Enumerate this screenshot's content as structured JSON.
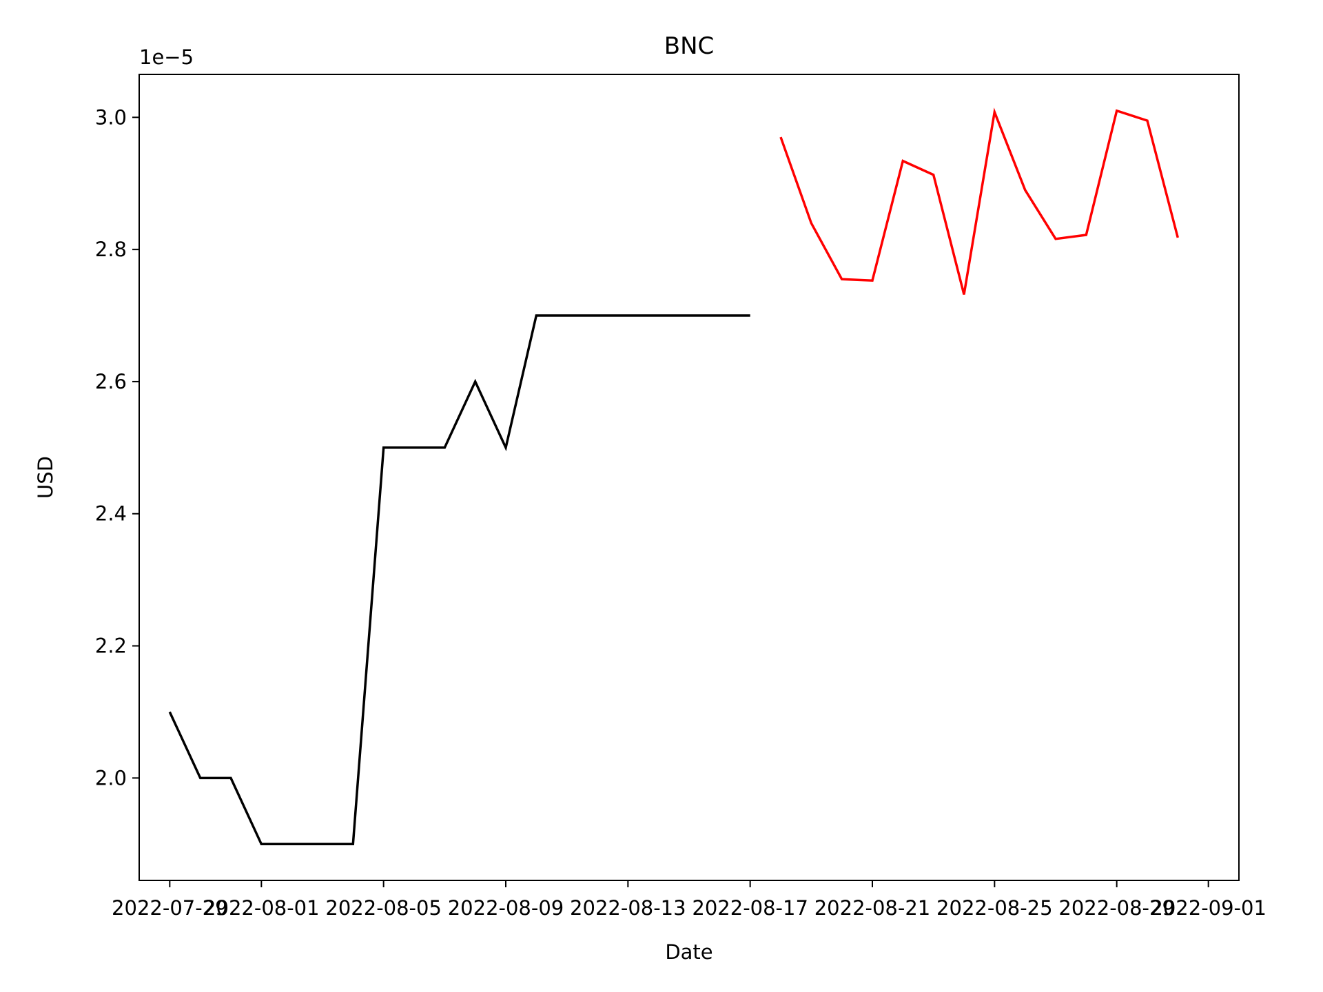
{
  "chart_data": {
    "type": "line",
    "title": "BNC",
    "xlabel": "Date",
    "ylabel": "USD",
    "y_offset_label": "1e−5",
    "y_scale": 1e-05,
    "xlim": [
      "2022-07-28",
      "2022-09-02"
    ],
    "ylim": [
      1.845e-05,
      3.065e-05
    ],
    "grid": false,
    "x_ticks": [
      "2022-07-29",
      "2022-08-01",
      "2022-08-05",
      "2022-08-09",
      "2022-08-13",
      "2022-08-17",
      "2022-08-21",
      "2022-08-25",
      "2022-08-29",
      "2022-09-01"
    ],
    "y_ticks": [
      2e-05,
      2.2e-05,
      2.4e-05,
      2.6e-05,
      2.8e-05,
      3e-05
    ],
    "y_tick_labels": [
      "2.0",
      "2.2",
      "2.4",
      "2.6",
      "2.8",
      "3.0"
    ],
    "series": [
      {
        "color": "#000000",
        "x": [
          "2022-07-29",
          "2022-07-30",
          "2022-07-31",
          "2022-08-01",
          "2022-08-02",
          "2022-08-03",
          "2022-08-04",
          "2022-08-05",
          "2022-08-06",
          "2022-08-07",
          "2022-08-08",
          "2022-08-09",
          "2022-08-10",
          "2022-08-11",
          "2022-08-12",
          "2022-08-13",
          "2022-08-14",
          "2022-08-15",
          "2022-08-16",
          "2022-08-17"
        ],
        "values": [
          2.1e-05,
          2e-05,
          2e-05,
          1.9e-05,
          1.9e-05,
          1.9e-05,
          1.9e-05,
          2.5e-05,
          2.5e-05,
          2.5e-05,
          2.6e-05,
          2.5e-05,
          2.7e-05,
          2.7e-05,
          2.7e-05,
          2.7e-05,
          2.7e-05,
          2.7e-05,
          2.7e-05,
          2.7e-05
        ]
      },
      {
        "color": "#ff0000",
        "x": [
          "2022-08-18",
          "2022-08-19",
          "2022-08-20",
          "2022-08-21",
          "2022-08-22",
          "2022-08-23",
          "2022-08-24",
          "2022-08-25",
          "2022-08-26",
          "2022-08-27",
          "2022-08-28",
          "2022-08-29",
          "2022-08-30",
          "2022-08-31"
        ],
        "values": [
          2.97e-05,
          2.84e-05,
          2.755e-05,
          2.753e-05,
          2.934e-05,
          2.913e-05,
          2.732e-05,
          3.008e-05,
          2.89e-05,
          2.816e-05,
          2.822e-05,
          3.01e-05,
          2.995e-05,
          2.818e-05
        ]
      }
    ]
  }
}
